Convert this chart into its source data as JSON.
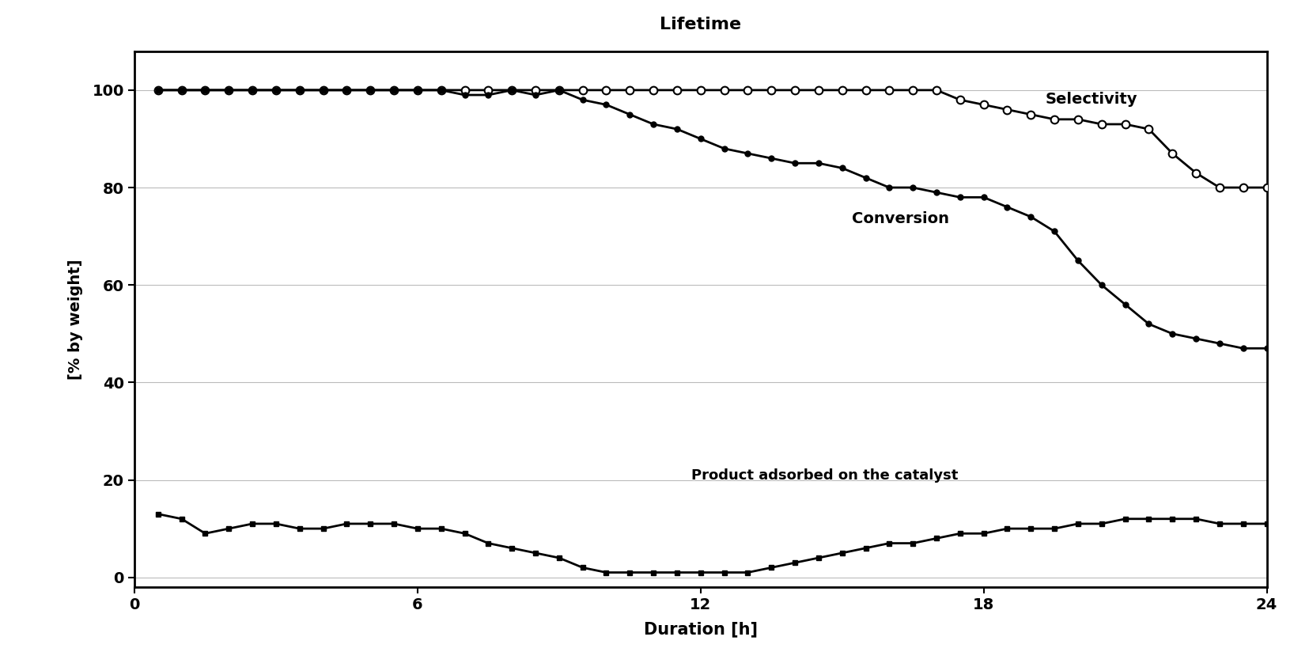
{
  "title": "Lifetime",
  "xlabel": "Duration [h]",
  "ylabel": "[% by weight]",
  "xlim": [
    0,
    24
  ],
  "ylim": [
    -2,
    108
  ],
  "yticks": [
    0,
    20,
    40,
    60,
    80,
    100
  ],
  "xticks": [
    0,
    6,
    12,
    18,
    24
  ],
  "background_color": "#ffffff",
  "selectivity": {
    "x": [
      0.5,
      1.0,
      1.5,
      2.0,
      2.5,
      3.0,
      3.5,
      4.0,
      4.5,
      5.0,
      5.5,
      6.0,
      6.5,
      7.0,
      7.5,
      8.0,
      8.5,
      9.0,
      9.5,
      10.0,
      10.5,
      11.0,
      11.5,
      12.0,
      12.5,
      13.0,
      13.5,
      14.0,
      14.5,
      15.0,
      15.5,
      16.0,
      16.5,
      17.0,
      17.5,
      18.0,
      18.5,
      19.0,
      19.5,
      20.0,
      20.5,
      21.0,
      21.5,
      22.0,
      22.5,
      23.0,
      23.5,
      24.0
    ],
    "y": [
      100,
      100,
      100,
      100,
      100,
      100,
      100,
      100,
      100,
      100,
      100,
      100,
      100,
      100,
      100,
      100,
      100,
      100,
      100,
      100,
      100,
      100,
      100,
      100,
      100,
      100,
      100,
      100,
      100,
      100,
      100,
      100,
      100,
      100,
      98,
      97,
      96,
      95,
      94,
      94,
      93,
      93,
      92,
      87,
      83,
      80,
      80,
      80
    ],
    "color": "#000000",
    "marker": "o",
    "marker_facecolor": "white",
    "linewidth": 2.0,
    "markersize": 7
  },
  "conversion": {
    "x": [
      0.5,
      1.0,
      1.5,
      2.0,
      2.5,
      3.0,
      3.5,
      4.0,
      4.5,
      5.0,
      5.5,
      6.0,
      6.5,
      7.0,
      7.5,
      8.0,
      8.5,
      9.0,
      9.5,
      10.0,
      10.5,
      11.0,
      11.5,
      12.0,
      12.5,
      13.0,
      13.5,
      14.0,
      14.5,
      15.0,
      15.5,
      16.0,
      16.5,
      17.0,
      17.5,
      18.0,
      18.5,
      19.0,
      19.5,
      20.0,
      20.5,
      21.0,
      21.5,
      22.0,
      22.5,
      23.0,
      23.5,
      24.0
    ],
    "y": [
      100,
      100,
      100,
      100,
      100,
      100,
      100,
      100,
      100,
      100,
      100,
      100,
      100,
      99,
      99,
      100,
      99,
      100,
      98,
      97,
      95,
      93,
      92,
      90,
      88,
      87,
      86,
      85,
      85,
      84,
      82,
      80,
      80,
      79,
      78,
      78,
      76,
      74,
      71,
      65,
      60,
      56,
      52,
      50,
      49,
      48,
      47,
      47
    ],
    "color": "#000000",
    "marker": "o",
    "marker_facecolor": "#000000",
    "linewidth": 2.0,
    "markersize": 5
  },
  "adsorbed": {
    "x": [
      0.5,
      1.0,
      1.5,
      2.0,
      2.5,
      3.0,
      3.5,
      4.0,
      4.5,
      5.0,
      5.5,
      6.0,
      6.5,
      7.0,
      7.5,
      8.0,
      8.5,
      9.0,
      9.5,
      10.0,
      10.5,
      11.0,
      11.5,
      12.0,
      12.5,
      13.0,
      13.5,
      14.0,
      14.5,
      15.0,
      15.5,
      16.0,
      16.5,
      17.0,
      17.5,
      18.0,
      18.5,
      19.0,
      19.5,
      20.0,
      20.5,
      21.0,
      21.5,
      22.0,
      22.5,
      23.0,
      23.5,
      24.0
    ],
    "y": [
      13,
      12,
      9,
      10,
      11,
      11,
      10,
      10,
      11,
      11,
      11,
      10,
      10,
      9,
      7,
      6,
      5,
      4,
      2,
      1,
      1,
      1,
      1,
      1,
      1,
      1,
      2,
      3,
      4,
      5,
      6,
      7,
      7,
      8,
      9,
      9,
      10,
      10,
      10,
      11,
      11,
      12,
      12,
      12,
      12,
      11,
      11,
      11
    ],
    "color": "#000000",
    "marker": "s",
    "marker_facecolor": "#000000",
    "linewidth": 2.0,
    "markersize": 5
  },
  "ann_sel_x": 19.3,
  "ann_sel_y": 96.5,
  "ann_sel_text": "Selectivity",
  "ann_conv_x": 15.2,
  "ann_conv_y": 72,
  "ann_conv_text": "Conversion",
  "ann_ads_x": 11.8,
  "ann_ads_y": 19.5,
  "ann_ads_text": "Product adsorbed on the catalyst",
  "fontsize_ann": 14,
  "fontsize_title": 16,
  "fontsize_axis_label": 15,
  "fontsize_ticks": 14
}
